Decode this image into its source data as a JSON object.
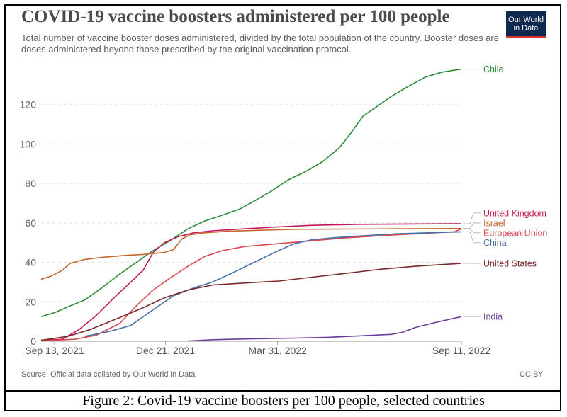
{
  "header": {
    "title": "COVID-19 vaccine boosters administered per 100 people",
    "subtitle": "Total number of vaccine booster doses administered, divided by the total population of the country. Booster doses are doses administered beyond those prescribed by the original vaccination protocol.",
    "logo_line1": "Our World",
    "logo_line2": "in Data"
  },
  "footer": {
    "source": "Source: Official data collated by Our World in Data",
    "license": "CC BY"
  },
  "caption": "Figure 2: Covid-19 vaccine boosters per 100 people, selected countries",
  "colors": {
    "Chile": "#2e8b3c",
    "United Kingdom": "#c2185b",
    "Israel": "#c4652a",
    "European Union": "#d9474f",
    "China": "#4a6fa5",
    "United States": "#7a2a2a",
    "India": "#6a3d9a"
  },
  "chart_data": {
    "type": "line",
    "title": "COVID-19 vaccine boosters administered per 100 people",
    "x_type": "date",
    "x_range": [
      "2021-09-01",
      "2022-09-11"
    ],
    "ylim": [
      0,
      140
    ],
    "y_ticks": [
      0,
      20,
      40,
      60,
      80,
      100,
      120
    ],
    "x_ticks": [
      {
        "date": "2021-09-13",
        "label": "Sep 13, 2021"
      },
      {
        "date": "2021-12-21",
        "label": "Dec 21, 2021"
      },
      {
        "date": "2022-03-31",
        "label": "Mar 31, 2022"
      },
      {
        "date": "2022-09-11",
        "label": "Sep 11, 2022"
      }
    ],
    "grid": true,
    "series": [
      {
        "name": "Chile",
        "points": [
          [
            "2021-09-01",
            12.5
          ],
          [
            "2021-09-13",
            14.5
          ],
          [
            "2021-09-25",
            17.5
          ],
          [
            "2021-10-10",
            21
          ],
          [
            "2021-10-25",
            27
          ],
          [
            "2021-11-10",
            34
          ],
          [
            "2021-11-25",
            40
          ],
          [
            "2021-12-10",
            46
          ],
          [
            "2021-12-25",
            51
          ],
          [
            "2022-01-10",
            57
          ],
          [
            "2022-01-25",
            61
          ],
          [
            "2022-02-10",
            64
          ],
          [
            "2022-02-25",
            67
          ],
          [
            "2022-03-10",
            71
          ],
          [
            "2022-03-25",
            76
          ],
          [
            "2022-04-10",
            82
          ],
          [
            "2022-04-25",
            86
          ],
          [
            "2022-05-10",
            91
          ],
          [
            "2022-05-25",
            98
          ],
          [
            "2022-06-05",
            106
          ],
          [
            "2022-06-15",
            114
          ],
          [
            "2022-06-25",
            118
          ],
          [
            "2022-07-10",
            124
          ],
          [
            "2022-07-25",
            129
          ],
          [
            "2022-08-10",
            134
          ],
          [
            "2022-08-25",
            136.5
          ],
          [
            "2022-09-11",
            138
          ]
        ]
      },
      {
        "name": "United Kingdom",
        "points": [
          [
            "2021-09-01",
            0.5
          ],
          [
            "2021-09-20",
            1
          ],
          [
            "2021-10-05",
            6
          ],
          [
            "2021-10-20",
            13
          ],
          [
            "2021-11-05",
            22
          ],
          [
            "2021-11-20",
            30
          ],
          [
            "2021-12-01",
            36
          ],
          [
            "2021-12-10",
            45
          ],
          [
            "2021-12-20",
            50
          ],
          [
            "2022-01-01",
            53
          ],
          [
            "2022-01-15",
            55
          ],
          [
            "2022-02-01",
            56
          ],
          [
            "2022-03-01",
            57
          ],
          [
            "2022-04-01",
            58
          ],
          [
            "2022-05-01",
            58.8
          ],
          [
            "2022-06-15",
            59.3
          ],
          [
            "2022-09-11",
            59.6
          ]
        ]
      },
      {
        "name": "Israel",
        "points": [
          [
            "2021-09-01",
            31.5
          ],
          [
            "2021-09-10",
            33
          ],
          [
            "2021-09-20",
            36
          ],
          [
            "2021-09-27",
            39.5
          ],
          [
            "2021-10-10",
            41.5
          ],
          [
            "2021-10-25",
            42.5
          ],
          [
            "2021-11-15",
            43.5
          ],
          [
            "2021-12-01",
            44
          ],
          [
            "2021-12-20",
            45
          ],
          [
            "2021-12-28",
            46.5
          ],
          [
            "2022-01-05",
            52
          ],
          [
            "2022-01-12",
            54
          ],
          [
            "2022-01-25",
            55
          ],
          [
            "2022-02-15",
            55.8
          ],
          [
            "2022-03-15",
            56.3
          ],
          [
            "2022-04-15",
            56.8
          ],
          [
            "2022-09-11",
            57.2
          ]
        ]
      },
      {
        "name": "European Union",
        "points": [
          [
            "2021-09-01",
            0.2
          ],
          [
            "2021-10-01",
            1
          ],
          [
            "2021-10-20",
            3
          ],
          [
            "2021-11-10",
            9
          ],
          [
            "2021-11-25",
            18
          ],
          [
            "2021-12-10",
            26
          ],
          [
            "2021-12-25",
            32
          ],
          [
            "2022-01-10",
            38
          ],
          [
            "2022-01-25",
            43
          ],
          [
            "2022-02-10",
            46
          ],
          [
            "2022-03-01",
            48
          ],
          [
            "2022-04-01",
            49.5
          ],
          [
            "2022-05-01",
            51
          ],
          [
            "2022-06-01",
            52.5
          ],
          [
            "2022-07-01",
            53.5
          ],
          [
            "2022-08-01",
            54.5
          ],
          [
            "2022-09-05",
            55.5
          ],
          [
            "2022-09-11",
            57
          ]
        ]
      },
      {
        "name": "China",
        "points": [
          [
            "2021-10-10",
            2.5
          ],
          [
            "2021-11-01",
            5
          ],
          [
            "2021-11-20",
            8
          ],
          [
            "2021-12-10",
            16
          ],
          [
            "2021-12-28",
            23
          ],
          [
            "2022-01-15",
            27
          ],
          [
            "2022-02-01",
            30
          ],
          [
            "2022-02-20",
            35
          ],
          [
            "2022-03-10",
            40
          ],
          [
            "2022-04-01",
            46
          ],
          [
            "2022-04-15",
            49.5
          ],
          [
            "2022-05-01",
            51.5
          ],
          [
            "2022-05-20",
            52.5
          ],
          [
            "2022-06-15",
            53.5
          ],
          [
            "2022-07-15",
            54.5
          ],
          [
            "2022-09-11",
            55.5
          ]
        ]
      },
      {
        "name": "United States",
        "points": [
          [
            "2021-09-01",
            0.5
          ],
          [
            "2021-09-25",
            2.5
          ],
          [
            "2021-10-15",
            6
          ],
          [
            "2021-11-10",
            12
          ],
          [
            "2021-12-01",
            17
          ],
          [
            "2021-12-20",
            22
          ],
          [
            "2022-01-10",
            26
          ],
          [
            "2022-02-01",
            28.5
          ],
          [
            "2022-03-01",
            29.5
          ],
          [
            "2022-04-01",
            30.5
          ],
          [
            "2022-05-01",
            32.5
          ],
          [
            "2022-06-01",
            34.5
          ],
          [
            "2022-07-01",
            36.5
          ],
          [
            "2022-08-01",
            38
          ],
          [
            "2022-09-11",
            39.5
          ]
        ]
      },
      {
        "name": "India",
        "points": [
          [
            "2022-01-10",
            0.1
          ],
          [
            "2022-02-01",
            0.8
          ],
          [
            "2022-03-01",
            1.2
          ],
          [
            "2022-04-15",
            1.6
          ],
          [
            "2022-05-15",
            2
          ],
          [
            "2022-06-15",
            2.8
          ],
          [
            "2022-07-10",
            3.5
          ],
          [
            "2022-07-20",
            4.5
          ],
          [
            "2022-08-01",
            7
          ],
          [
            "2022-08-15",
            9
          ],
          [
            "2022-09-11",
            12.5
          ]
        ]
      }
    ],
    "labels": [
      {
        "name": "Chile",
        "text": "Chile",
        "label_y": 138
      },
      {
        "name": "United Kingdom",
        "text": "United Kingdom",
        "label_y": 65
      },
      {
        "name": "Israel",
        "text": "Israel",
        "label_y": 60
      },
      {
        "name": "European Union",
        "text": "European Union",
        "label_y": 55
      },
      {
        "name": "China",
        "text": "China",
        "label_y": 50
      },
      {
        "name": "United States",
        "text": "United States",
        "label_y": 39.5
      },
      {
        "name": "India",
        "text": "India",
        "label_y": 12.5
      }
    ]
  }
}
